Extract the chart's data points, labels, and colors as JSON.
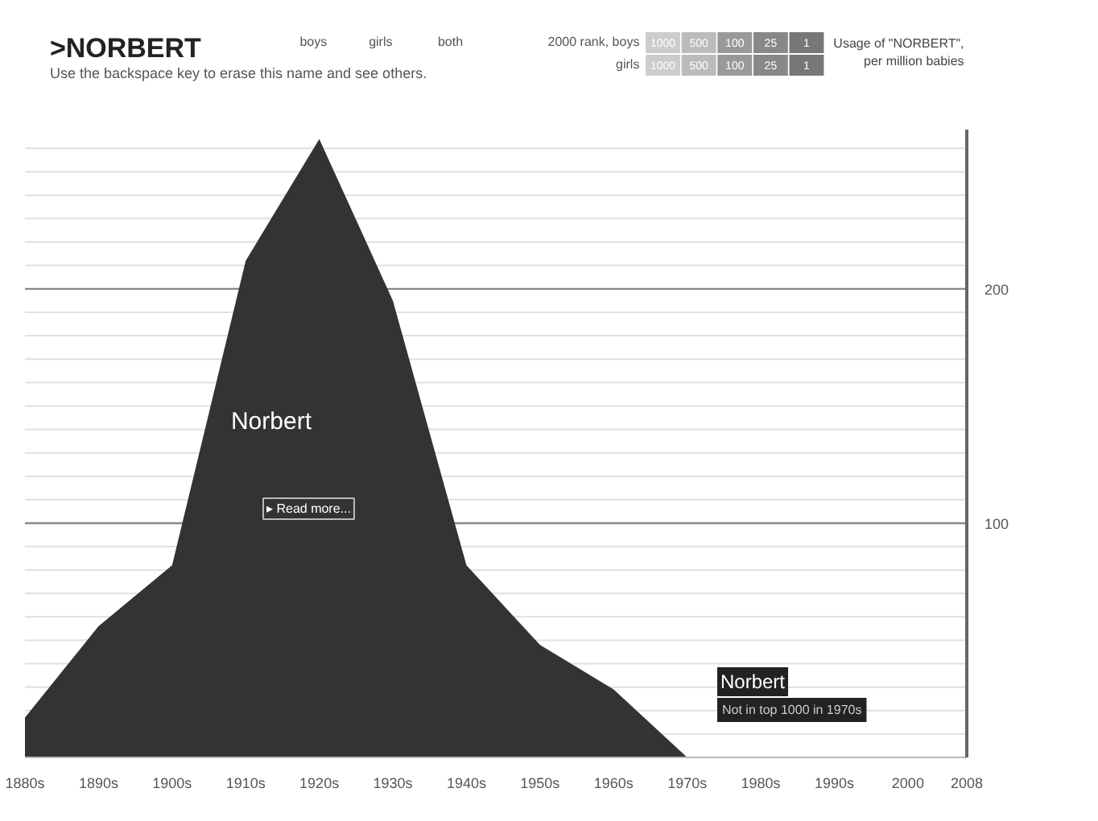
{
  "chart_data": {
    "type": "area",
    "title": ">NORBERT",
    "subtitle": "Use the backspace key to erase this name and see others.",
    "ylabel": "Usage of \"NORBERT\", per million babies",
    "x": [
      1880,
      1890,
      1900,
      1910,
      1920,
      1930,
      1940,
      1950,
      1960,
      1970
    ],
    "series": [
      {
        "name": "Norbert",
        "color": "#333333",
        "values": [
          17,
          56,
          82,
          212,
          264,
          195,
          82,
          48,
          29,
          0
        ]
      }
    ],
    "xlim": [
      1880,
      2008
    ],
    "ylim": [
      0,
      268
    ],
    "xticks": [
      {
        "value": 1880,
        "label": "1880s"
      },
      {
        "value": 1890,
        "label": "1890s"
      },
      {
        "value": 1900,
        "label": "1900s"
      },
      {
        "value": 1910,
        "label": "1910s"
      },
      {
        "value": 1920,
        "label": "1920s"
      },
      {
        "value": 1930,
        "label": "1930s"
      },
      {
        "value": 1940,
        "label": "1940s"
      },
      {
        "value": 1950,
        "label": "1950s"
      },
      {
        "value": 1960,
        "label": "1960s"
      },
      {
        "value": 1970,
        "label": "1970s"
      },
      {
        "value": 1980,
        "label": "1980s"
      },
      {
        "value": 1990,
        "label": "1990s"
      },
      2000,
      2008
    ],
    "yticks": [
      {
        "value": 10,
        "label": null
      },
      {
        "value": 20,
        "label": null
      },
      {
        "value": 30,
        "label": null
      },
      {
        "value": 40,
        "label": null
      },
      {
        "value": 50,
        "label": null
      },
      {
        "value": 60,
        "label": null
      },
      {
        "value": 70,
        "label": null
      },
      {
        "value": 80,
        "label": null
      },
      {
        "value": 90,
        "label": null
      },
      100,
      {
        "value": 110,
        "label": null
      },
      {
        "value": 120,
        "label": null
      },
      {
        "value": 130,
        "label": null
      },
      {
        "value": 140,
        "label": null
      },
      {
        "value": 150,
        "label": null
      },
      {
        "value": 160,
        "label": null
      },
      {
        "value": 170,
        "label": null
      },
      {
        "value": 180,
        "label": null
      },
      {
        "value": 190,
        "label": null
      },
      200,
      {
        "value": 210,
        "label": null
      },
      {
        "value": 220,
        "label": null
      },
      {
        "value": 230,
        "label": null
      },
      {
        "value": 240,
        "label": null
      },
      {
        "value": 250,
        "label": null
      },
      {
        "value": 260,
        "label": null
      }
    ],
    "grid": "y",
    "annotations": [
      "boys",
      "girls",
      "both",
      "2000 rank, boys",
      "girls",
      "1000",
      "500",
      "100",
      "25",
      "1",
      "1000",
      "500",
      "100",
      "25",
      "1",
      "▸ Read more...",
      "Norbert",
      "Not in top 1000 in 1970s"
    ]
  }
}
